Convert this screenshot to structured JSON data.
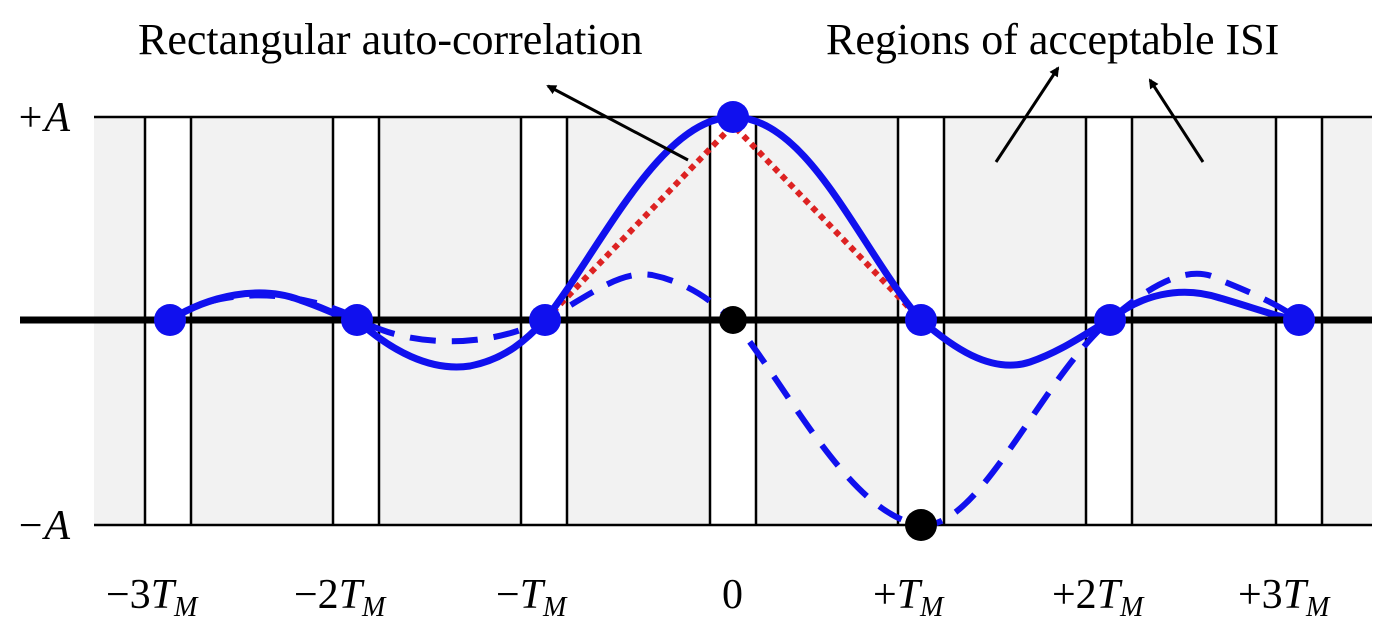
{
  "annotations": {
    "rect_autocorr": "Rectangular auto-correlation",
    "regions_isi": "Regions of acceptable ISI"
  },
  "y_labels": {
    "top": "+A",
    "bottom": "−A"
  },
  "x_ticks": [
    {
      "pre": "−3",
      "var": "T",
      "sub": "M"
    },
    {
      "pre": "−2",
      "var": "T",
      "sub": "M"
    },
    {
      "pre": "−",
      "var": "T",
      "sub": "M"
    },
    {
      "pre": "0",
      "var": "",
      "sub": ""
    },
    {
      "pre": "+",
      "var": "T",
      "sub": "M"
    },
    {
      "pre": "+2",
      "var": "T",
      "sub": "M"
    },
    {
      "pre": "+3",
      "var": "T",
      "sub": "M"
    }
  ],
  "colors": {
    "curve": "#1010ee",
    "triangle": "#dd2222",
    "shade": "#f2f2f2",
    "axis": "#000000",
    "sample_black": "#000000"
  },
  "series": {
    "solid_blue": "raised-cosine pulse peaking at +A at 0, zero at every multiple of T_M",
    "dashed_blue": "shifted pulse reaching −A at +T_M, zero crossing at 0",
    "red_dotted": "triangular auto-correlation from −T_M to +T_M"
  }
}
